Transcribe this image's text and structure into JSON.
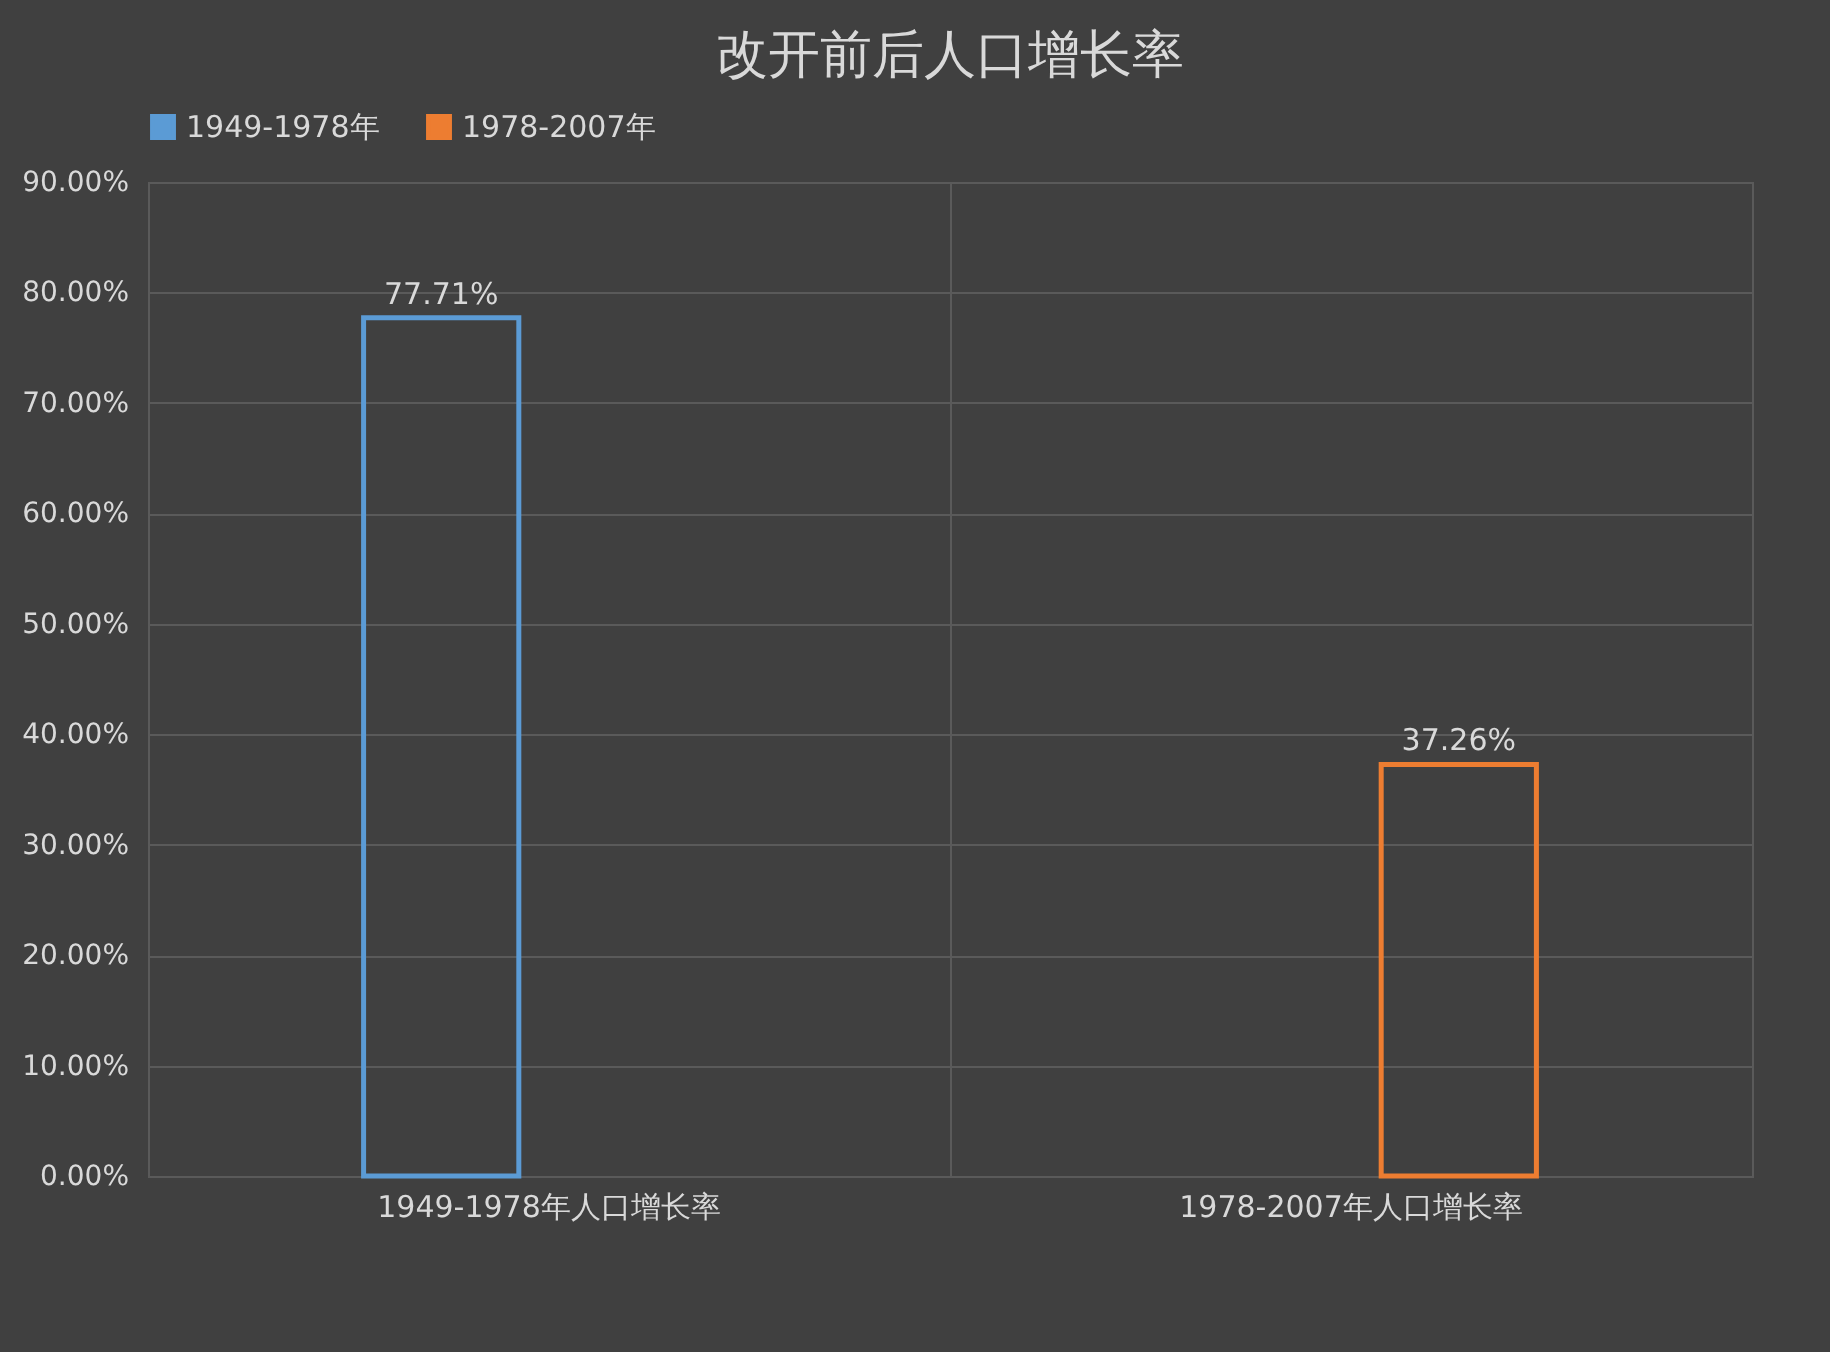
{
  "chart_data": {
    "type": "bar",
    "title": "改开前后人口增长率",
    "categories": [
      "1949-1978年人口增长率",
      "1978-2007年人口增长率"
    ],
    "series": [
      {
        "name": "1949-1978年",
        "color": "#5b9bd5",
        "values": [
          77.71,
          null
        ],
        "value_labels": [
          "77.71%",
          null
        ]
      },
      {
        "name": "1978-2007年",
        "color": "#ed7d31",
        "values": [
          null,
          37.26
        ],
        "value_labels": [
          null,
          "37.26%"
        ]
      }
    ],
    "ylim": [
      0,
      90
    ],
    "yticks": [
      {
        "value": 0,
        "label": "0.00%"
      },
      {
        "value": 10,
        "label": "10.00%"
      },
      {
        "value": 20,
        "label": "20.00%"
      },
      {
        "value": 30,
        "label": "30.00%"
      },
      {
        "value": 40,
        "label": "40.00%"
      },
      {
        "value": 50,
        "label": "50.00%"
      },
      {
        "value": 60,
        "label": "60.00%"
      },
      {
        "value": 70,
        "label": "70.00%"
      },
      {
        "value": 80,
        "label": "80.00%"
      },
      {
        "value": 90,
        "label": "90.00%"
      }
    ],
    "grid": true,
    "legend": "top"
  }
}
